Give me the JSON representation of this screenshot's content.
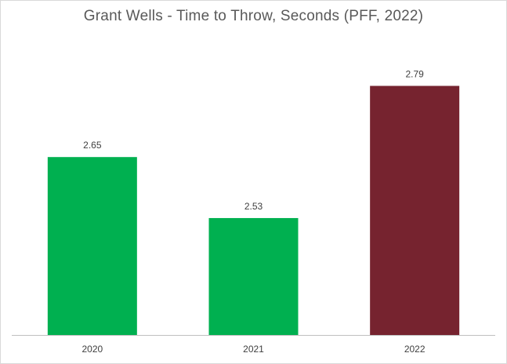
{
  "chart_data": {
    "type": "bar",
    "title": "Grant Wells - Time to Throw, Seconds (PFF, 2022)",
    "categories": [
      "2020",
      "2021",
      "2022"
    ],
    "values": [
      2.65,
      2.53,
      2.79
    ],
    "data_labels": [
      "2.65",
      "2.53",
      "2.79"
    ],
    "bar_colors": [
      "#00b050",
      "#00b050",
      "#76232f"
    ],
    "xlabel": "",
    "ylabel": "",
    "ylim": [
      2.3,
      2.8
    ],
    "grid": false,
    "legend": "none"
  }
}
